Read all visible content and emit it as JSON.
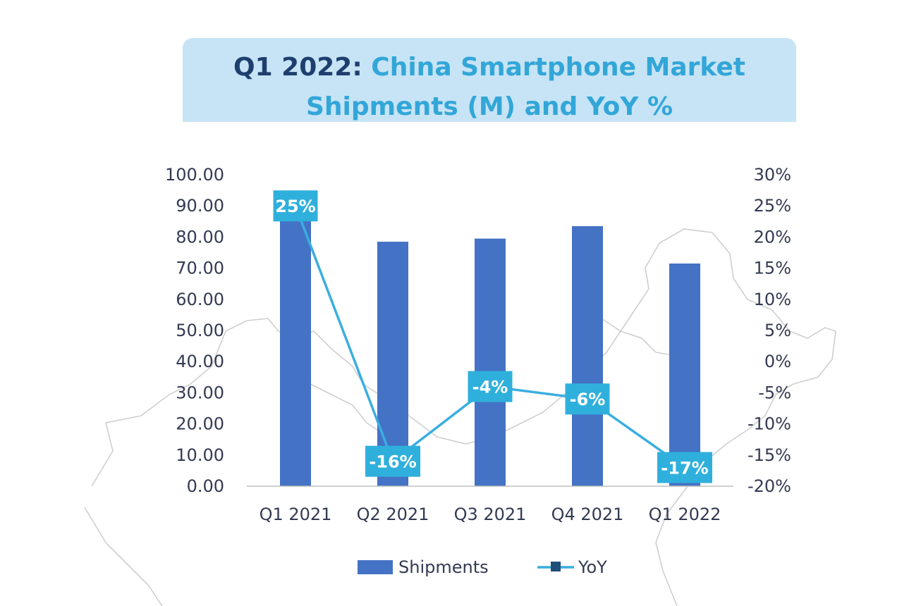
{
  "title": {
    "lead": "Q1 2022:",
    "line1_rest": "China Smartphone Market",
    "line2": "Shipments (M) and YoY %"
  },
  "colors": {
    "bar": "#4472c4",
    "line": "#3aaee0",
    "label_box": "#2fb0dc",
    "banner": "#c6e4f5",
    "map_outline": "#c8c8c8"
  },
  "chart_data": {
    "type": "bar",
    "title": "Q1 2022: China Smartphone Market Shipments (M) and YoY %",
    "categories": [
      "Q1 2021",
      "Q2 2021",
      "Q3 2021",
      "Q4 2021",
      "Q1 2022"
    ],
    "series": [
      {
        "name": "Shipments",
        "type": "bar",
        "axis": "left",
        "values": [
          92.6,
          78.5,
          79.5,
          83.5,
          71.5
        ]
      },
      {
        "name": "YoY",
        "type": "line",
        "axis": "right",
        "values": [
          25,
          -16,
          -4,
          -6,
          -17
        ],
        "labels": [
          "25%",
          "-16%",
          "-4%",
          "-6%",
          "-17%"
        ]
      }
    ],
    "y_left": {
      "min": 0,
      "max": 100,
      "step": 10,
      "tick_labels": [
        "0.00",
        "10.00",
        "20.00",
        "30.00",
        "40.00",
        "50.00",
        "60.00",
        "70.00",
        "80.00",
        "90.00",
        "100.00"
      ]
    },
    "y_right": {
      "min": -20,
      "max": 30,
      "step": 5,
      "tick_labels": [
        "-20%",
        "-15%",
        "-10%",
        "-5%",
        "0%",
        "5%",
        "10%",
        "15%",
        "20%",
        "25%",
        "30%"
      ]
    },
    "grid": false,
    "legend": {
      "position": "bottom",
      "entries": [
        "Shipments",
        "YoY"
      ]
    }
  }
}
